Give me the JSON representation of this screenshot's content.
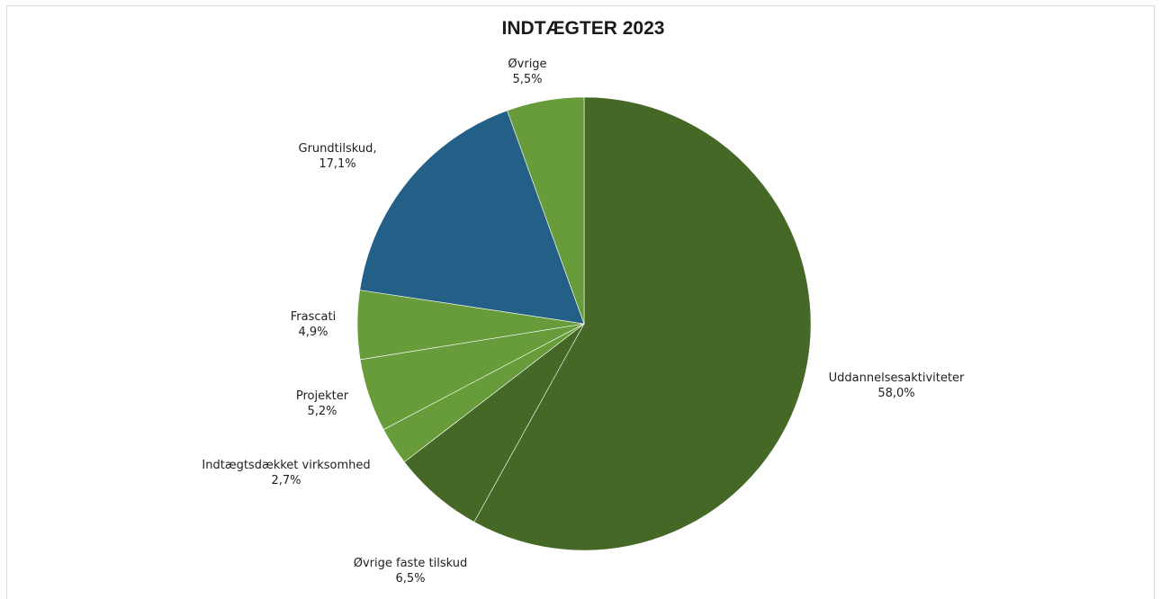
{
  "chart_data": {
    "type": "pie",
    "title": "INDTÆGTER 2023",
    "slices": [
      {
        "label": "Uddannelsesaktiviteter",
        "value": 58.0,
        "value_text": "58,0%",
        "color": "#466826"
      },
      {
        "label": "Øvrige faste tilskud",
        "value": 6.5,
        "value_text": "6,5%",
        "color": "#466826"
      },
      {
        "label": "Indtægtsdækket virksomhed",
        "value": 2.7,
        "value_text": "2,7%",
        "color": "#689c3a"
      },
      {
        "label": "Projekter",
        "value": 5.2,
        "value_text": "5,2%",
        "color": "#689c3a"
      },
      {
        "label": "Frascati",
        "value": 4.9,
        "value_text": "4,9%",
        "color": "#689c3a"
      },
      {
        "label": "Grundtilskud,",
        "value": 17.1,
        "value_text": "17,1%",
        "color": "#245f87"
      },
      {
        "label": "Øvrige",
        "value": 5.5,
        "value_text": "5,5%",
        "color": "#689c3a"
      }
    ],
    "start_angle": "12 o'clock",
    "direction": "clockwise",
    "legend": "none",
    "data_labels": "outside"
  }
}
